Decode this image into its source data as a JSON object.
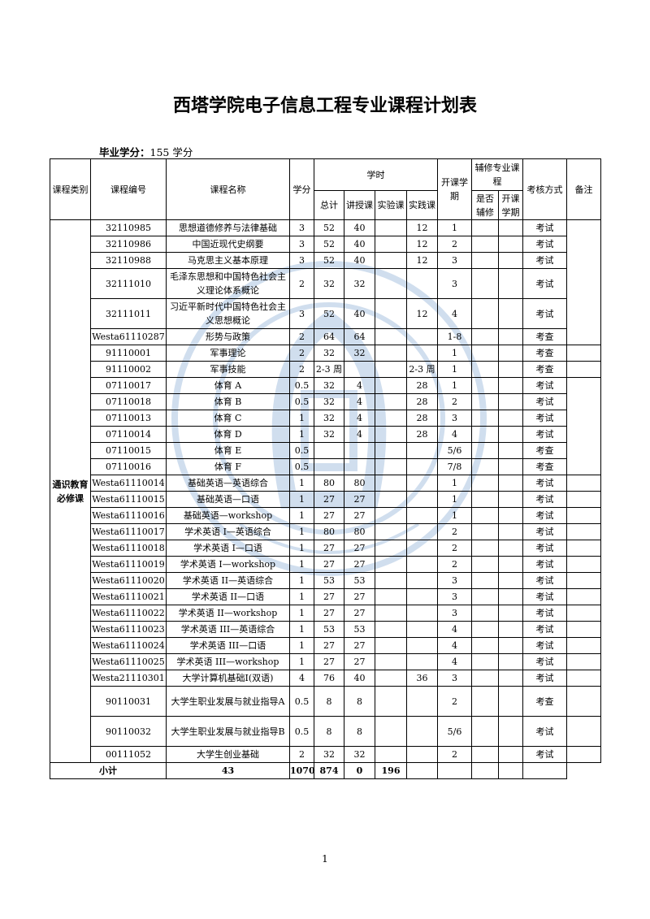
{
  "title": "西塔学院电子信息工程专业课程计划表",
  "credits_label": "毕业学分：",
  "credits_value": "155 学分",
  "headers": {
    "category": "课程类别",
    "code": "课程编号",
    "name": "课程名称",
    "credit": "学分",
    "hours": "学时",
    "total": "总计",
    "lecture": "讲授课",
    "lab": "实验课",
    "practice": "实践课",
    "semester": "开课学期",
    "minor": "辅修专业课程",
    "minor_yes": "是否辅修",
    "minor_sem": "开课学期",
    "exam": "考核方式",
    "note": "备注"
  },
  "category": "通识教育必修课",
  "rows": [
    [
      "32110985",
      "思想道德修养与法律基础",
      "3",
      "52",
      "40",
      "",
      "12",
      "1",
      "考试"
    ],
    [
      "32110986",
      "中国近现代史纲要",
      "3",
      "52",
      "40",
      "",
      "12",
      "2",
      "考试"
    ],
    [
      "32110988",
      "马克思主义基本原理",
      "3",
      "52",
      "40",
      "",
      "12",
      "3",
      "考试"
    ],
    [
      "32111010",
      "毛泽东思想和中国特色社会主义理论体系概论",
      "2",
      "32",
      "32",
      "",
      "",
      "3",
      "考试"
    ],
    [
      "32111011",
      "习近平新时代中国特色社会主义思想概论",
      "3",
      "52",
      "40",
      "",
      "12",
      "4",
      "考试"
    ],
    [
      "Westa61110287",
      "形势与政策",
      "2",
      "64",
      "64",
      "",
      "",
      "1-8",
      "考查"
    ],
    [
      "91110001",
      "军事理论",
      "2",
      "32",
      "32",
      "",
      "",
      "1",
      "考查"
    ],
    [
      "91110002",
      "军事技能",
      "2",
      "2-3 周",
      "",
      "",
      "2-3 周",
      "1",
      "考查"
    ],
    [
      "07110017",
      "体育 A",
      "0.5",
      "32",
      "4",
      "",
      "28",
      "1",
      "考试"
    ],
    [
      "07110018",
      "体育 B",
      "0.5",
      "32",
      "4",
      "",
      "28",
      "2",
      "考试"
    ],
    [
      "07110013",
      "体育 C",
      "1",
      "32",
      "4",
      "",
      "28",
      "3",
      "考试"
    ],
    [
      "07110014",
      "体育 D",
      "1",
      "32",
      "4",
      "",
      "28",
      "4",
      "考试"
    ],
    [
      "07110015",
      "体育 E",
      "0.5",
      "",
      "",
      "",
      "",
      "5/6",
      "考查"
    ],
    [
      "07110016",
      "体育 F",
      "0.5",
      "",
      "",
      "",
      "",
      "7/8",
      "考查"
    ],
    [
      "Westa61110014",
      "基础英语—英语综合",
      "1",
      "80",
      "80",
      "",
      "",
      "1",
      "考试"
    ],
    [
      "Westa61110015",
      "基础英语—口语",
      "1",
      "27",
      "27",
      "",
      "",
      "1",
      "考试"
    ],
    [
      "Westa61110016",
      "基础英语—workshop",
      "1",
      "27",
      "27",
      "",
      "",
      "1",
      "考试"
    ],
    [
      "Westa61110017",
      "学术英语 I—英语综合",
      "1",
      "80",
      "80",
      "",
      "",
      "2",
      "考试"
    ],
    [
      "Westa61110018",
      "学术英语 I—口语",
      "1",
      "27",
      "27",
      "",
      "",
      "2",
      "考试"
    ],
    [
      "Westa61110019",
      "学术英语 I—workshop",
      "1",
      "27",
      "27",
      "",
      "",
      "2",
      "考试"
    ],
    [
      "Westa61110020",
      "学术英语 II—英语综合",
      "1",
      "53",
      "53",
      "",
      "",
      "3",
      "考试"
    ],
    [
      "Westa61110021",
      "学术英语 II—口语",
      "1",
      "27",
      "27",
      "",
      "",
      "3",
      "考试"
    ],
    [
      "Westa61110022",
      "学术英语 II—workshop",
      "1",
      "27",
      "27",
      "",
      "",
      "3",
      "考试"
    ],
    [
      "Westa61110023",
      "学术英语 III—英语综合",
      "1",
      "53",
      "53",
      "",
      "",
      "4",
      "考试"
    ],
    [
      "Westa61110024",
      "学术英语 III—口语",
      "1",
      "27",
      "27",
      "",
      "",
      "4",
      "考试"
    ],
    [
      "Westa61110025",
      "学术英语 III—workshop",
      "1",
      "27",
      "27",
      "",
      "",
      "4",
      "考试"
    ],
    [
      "Westa21110301",
      "大学计算机基础I(双语)",
      "4",
      "76",
      "40",
      "",
      "36",
      "3",
      "考试"
    ],
    [
      "90110031",
      "大学生职业发展与就业指导A",
      "0.5",
      "8",
      "8",
      "",
      "",
      "2",
      "考查"
    ],
    [
      "90110032",
      "大学生职业发展与就业指导B",
      "0.5",
      "8",
      "8",
      "",
      "",
      "5/6",
      "考试"
    ],
    [
      "00111052",
      "大学生创业基础",
      "2",
      "32",
      "32",
      "",
      "",
      "2",
      "考试"
    ]
  ],
  "subtotal": {
    "label": "小计",
    "credit": "43",
    "total": "1070",
    "lecture": "874",
    "lab": "0",
    "practice": "196"
  },
  "page_number": "1",
  "watermark": "SOUTHWEST UNIVERSITY 1906",
  "colors": {
    "watermark": "#2f6db3"
  }
}
